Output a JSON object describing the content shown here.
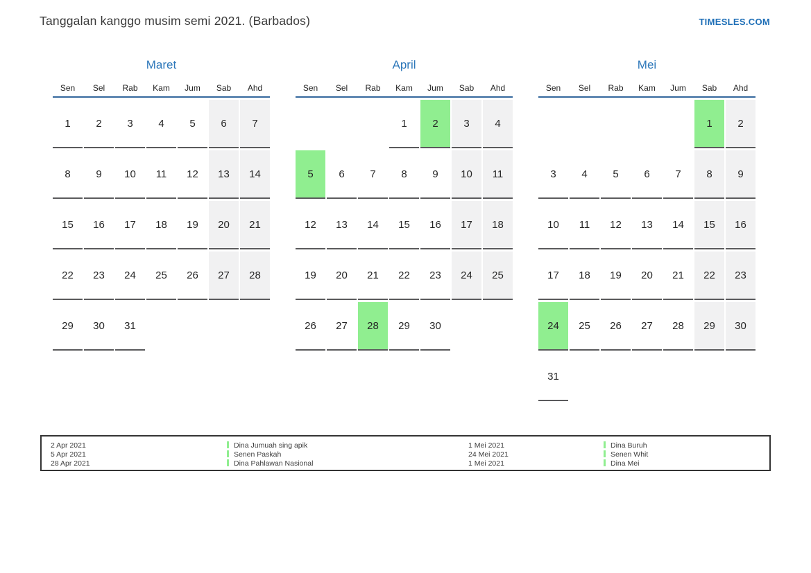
{
  "header": {
    "title": "Tanggalan kanggo musim semi 2021. (Barbados)",
    "site_link": "TIMESLES.COM"
  },
  "calendar": {
    "weekday_headers": [
      "Sen",
      "Sel",
      "Rab",
      "Kam",
      "Jum",
      "Sab",
      "Ahd"
    ],
    "months": [
      {
        "name": "Maret",
        "weeks": [
          [
            {
              "d": 1
            },
            {
              "d": 2
            },
            {
              "d": 3
            },
            {
              "d": 4
            },
            {
              "d": 5
            },
            {
              "d": 6,
              "weekend": true
            },
            {
              "d": 7,
              "weekend": true
            }
          ],
          [
            {
              "d": 8
            },
            {
              "d": 9
            },
            {
              "d": 10
            },
            {
              "d": 11
            },
            {
              "d": 12
            },
            {
              "d": 13,
              "weekend": true
            },
            {
              "d": 14,
              "weekend": true
            }
          ],
          [
            {
              "d": 15
            },
            {
              "d": 16
            },
            {
              "d": 17
            },
            {
              "d": 18
            },
            {
              "d": 19
            },
            {
              "d": 20,
              "weekend": true
            },
            {
              "d": 21,
              "weekend": true
            }
          ],
          [
            {
              "d": 22
            },
            {
              "d": 23
            },
            {
              "d": 24
            },
            {
              "d": 25
            },
            {
              "d": 26
            },
            {
              "d": 27,
              "weekend": true
            },
            {
              "d": 28,
              "weekend": true
            }
          ],
          [
            {
              "d": 29
            },
            {
              "d": 30
            },
            {
              "d": 31
            },
            null,
            null,
            null,
            null
          ]
        ]
      },
      {
        "name": "April",
        "weeks": [
          [
            null,
            null,
            null,
            {
              "d": 1
            },
            {
              "d": 2,
              "holiday": true
            },
            {
              "d": 3,
              "weekend": true
            },
            {
              "d": 4,
              "weekend": true
            }
          ],
          [
            {
              "d": 5,
              "holiday": true
            },
            {
              "d": 6
            },
            {
              "d": 7
            },
            {
              "d": 8
            },
            {
              "d": 9
            },
            {
              "d": 10,
              "weekend": true
            },
            {
              "d": 11,
              "weekend": true
            }
          ],
          [
            {
              "d": 12
            },
            {
              "d": 13
            },
            {
              "d": 14
            },
            {
              "d": 15
            },
            {
              "d": 16
            },
            {
              "d": 17,
              "weekend": true
            },
            {
              "d": 18,
              "weekend": true
            }
          ],
          [
            {
              "d": 19
            },
            {
              "d": 20
            },
            {
              "d": 21
            },
            {
              "d": 22
            },
            {
              "d": 23
            },
            {
              "d": 24,
              "weekend": true
            },
            {
              "d": 25,
              "weekend": true
            }
          ],
          [
            {
              "d": 26
            },
            {
              "d": 27
            },
            {
              "d": 28,
              "holiday": true
            },
            {
              "d": 29
            },
            {
              "d": 30
            },
            null,
            null
          ]
        ]
      },
      {
        "name": "Mei",
        "weeks": [
          [
            null,
            null,
            null,
            null,
            null,
            {
              "d": 1,
              "holiday": true
            },
            {
              "d": 2,
              "weekend": true
            }
          ],
          [
            {
              "d": 3
            },
            {
              "d": 4
            },
            {
              "d": 5
            },
            {
              "d": 6
            },
            {
              "d": 7
            },
            {
              "d": 8,
              "weekend": true
            },
            {
              "d": 9,
              "weekend": true
            }
          ],
          [
            {
              "d": 10
            },
            {
              "d": 11
            },
            {
              "d": 12
            },
            {
              "d": 13
            },
            {
              "d": 14
            },
            {
              "d": 15,
              "weekend": true
            },
            {
              "d": 16,
              "weekend": true
            }
          ],
          [
            {
              "d": 17
            },
            {
              "d": 18
            },
            {
              "d": 19
            },
            {
              "d": 20
            },
            {
              "d": 21
            },
            {
              "d": 22,
              "weekend": true
            },
            {
              "d": 23,
              "weekend": true
            }
          ],
          [
            {
              "d": 24,
              "holiday": true
            },
            {
              "d": 25
            },
            {
              "d": 26
            },
            {
              "d": 27
            },
            {
              "d": 28
            },
            {
              "d": 29,
              "weekend": true
            },
            {
              "d": 30,
              "weekend": true
            }
          ],
          [
            {
              "d": 31
            },
            null,
            null,
            null,
            null,
            null,
            null
          ]
        ]
      }
    ]
  },
  "legend": {
    "groups": [
      {
        "entries": [
          {
            "date": "2 Apr 2021",
            "name": "Dina Jumuah sing apik"
          },
          {
            "date": "5 Apr 2021",
            "name": "Senen Paskah"
          },
          {
            "date": "28 Apr 2021",
            "name": "Dina Pahlawan Nasional"
          }
        ]
      },
      {
        "entries": [
          {
            "date": "1 Mei 2021",
            "name": "Dina Buruh"
          },
          {
            "date": "24 Mei 2021",
            "name": "Senen Whit"
          },
          {
            "date": "1 Mei 2021",
            "name": "Dina Mei"
          }
        ]
      }
    ]
  },
  "colors": {
    "holiday_green": "#90ee90",
    "weekend_gray": "#f1f1f2",
    "header_line_blue": "#34689d",
    "month_title_blue": "#2e78ba",
    "site_link_blue": "#1d6eb7",
    "cell_underline_gray": "#5a5a5c"
  }
}
